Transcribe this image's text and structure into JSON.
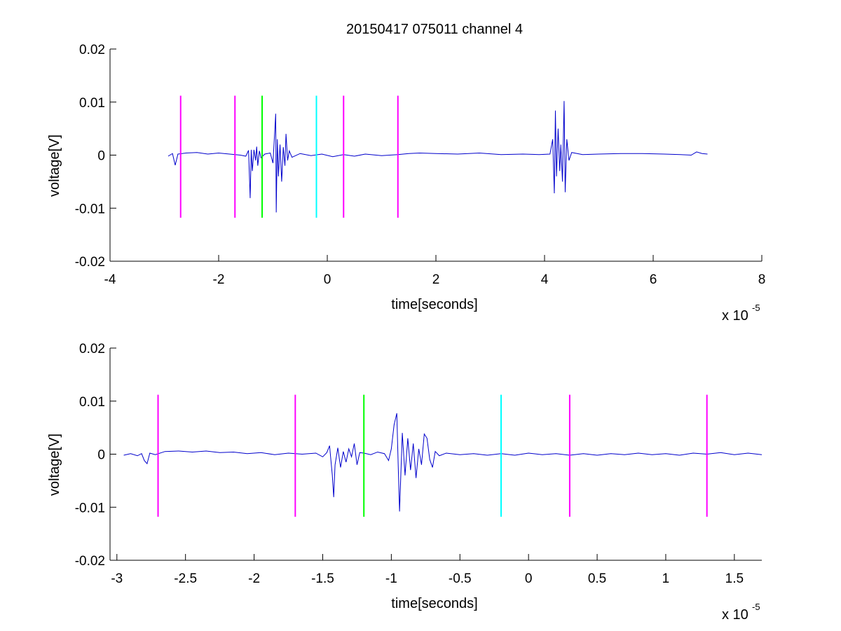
{
  "figure": {
    "title": "20150417 075011 channel 4"
  },
  "chart_data": [
    {
      "type": "line",
      "title": "20150417 075011 channel 4",
      "xlabel": "time[seconds]",
      "ylabel": "voltage[V]",
      "x_exponent_label": "x 10",
      "x_exponent": "-5",
      "xlim": [
        -4e-05,
        8e-05
      ],
      "ylim": [
        -0.02,
        0.02
      ],
      "xticks": [
        -4e-05,
        -2e-05,
        0,
        2e-05,
        4e-05,
        6e-05,
        8e-05
      ],
      "xtick_labels": [
        "-4",
        "-2",
        "0",
        "2",
        "4",
        "6",
        "8"
      ],
      "yticks": [
        -0.02,
        -0.01,
        0,
        0.01,
        0.02
      ],
      "ytick_labels": [
        "-0.02",
        "-0.01",
        "0",
        "0.01",
        "0.02"
      ],
      "grid": false,
      "series": [
        {
          "color": "#0000cc",
          "x_range": [
            -2.93e-05,
            7e-05
          ],
          "points": [
            [
              -2.93e-05,
              -0.0002
            ],
            [
              -2.85e-05,
              0.0003
            ],
            [
              -2.8e-05,
              -0.0019
            ],
            [
              -2.75e-05,
              0.0002
            ],
            [
              -2.6e-05,
              0.0004
            ],
            [
              -2.4e-05,
              0.0005
            ],
            [
              -2.2e-05,
              0.0002
            ],
            [
              -2e-05,
              0.0004
            ],
            [
              -1.8e-05,
              0.0002
            ],
            [
              -1.6e-05,
              0.0
            ],
            [
              -1.5e-05,
              -0.0002
            ],
            [
              -1.45e-05,
              0.0009
            ],
            [
              -1.43e-05,
              -0.005
            ],
            [
              -1.42e-05,
              -0.0081
            ],
            [
              -1.4e-05,
              0.001
            ],
            [
              -1.38e-05,
              -0.003
            ],
            [
              -1.35e-05,
              0.001
            ],
            [
              -1.32e-05,
              -0.001
            ],
            [
              -1.3e-05,
              0.0016
            ],
            [
              -1.28e-05,
              -0.002
            ],
            [
              -1.25e-05,
              0.0008
            ],
            [
              -1.22e-05,
              -0.0005
            ],
            [
              -1.15e-05,
              0.0002
            ],
            [
              -1.05e-05,
              0.0004
            ],
            [
              -1e-05,
              -0.0015
            ],
            [
              -9.7e-06,
              0.004
            ],
            [
              -9.5e-06,
              0.0078
            ],
            [
              -9.4e-06,
              -0.0108
            ],
            [
              -9.2e-06,
              0.003
            ],
            [
              -9e-06,
              -0.004
            ],
            [
              -8.7e-06,
              0.002
            ],
            [
              -8.4e-06,
              -0.005
            ],
            [
              -8.1e-06,
              0.0015
            ],
            [
              -7.8e-06,
              -0.002
            ],
            [
              -7.6e-06,
              0.004
            ],
            [
              -7.3e-06,
              -0.001
            ],
            [
              -7e-06,
              0.0008
            ],
            [
              -6.5e-06,
              -0.0004
            ],
            [
              -5e-06,
              0.0003
            ],
            [
              -3e-06,
              -0.0001
            ],
            [
              -1e-06,
              0.0002
            ],
            [
              1e-06,
              -0.0003
            ],
            [
              3e-06,
              0.0001
            ],
            [
              5e-06,
              -0.0002
            ],
            [
              7e-06,
              0.0002
            ],
            [
              1e-05,
              -0.0001
            ],
            [
              1.3e-05,
              0.0001
            ],
            [
              1.5e-05,
              0.0003
            ],
            [
              1.7e-05,
              0.0004
            ],
            [
              2e-05,
              0.0003
            ],
            [
              2.4e-05,
              0.0002
            ],
            [
              2.8e-05,
              0.0004
            ],
            [
              3.2e-05,
              0.0001
            ],
            [
              3.6e-05,
              0.0002
            ],
            [
              3.9e-05,
              0.0001
            ],
            [
              4.1e-05,
              0.0002
            ],
            [
              4.15e-05,
              0.003
            ],
            [
              4.18e-05,
              -0.0072
            ],
            [
              4.2e-05,
              0.0084
            ],
            [
              4.22e-05,
              -0.004
            ],
            [
              4.25e-05,
              0.005
            ],
            [
              4.28e-05,
              -0.003
            ],
            [
              4.3e-05,
              0.002
            ],
            [
              4.33e-05,
              -0.005
            ],
            [
              4.36e-05,
              0.0102
            ],
            [
              4.38e-05,
              -0.007
            ],
            [
              4.41e-05,
              0.003
            ],
            [
              4.45e-05,
              -0.001
            ],
            [
              4.5e-05,
              0.0005
            ],
            [
              4.7e-05,
              0.0001
            ],
            [
              5e-05,
              0.0002
            ],
            [
              5.4e-05,
              0.0003
            ],
            [
              5.8e-05,
              0.0003
            ],
            [
              6.2e-05,
              0.0002
            ],
            [
              6.5e-05,
              0.0001
            ],
            [
              6.7e-05,
              0.0
            ],
            [
              6.8e-05,
              0.0006
            ],
            [
              6.9e-05,
              0.0003
            ],
            [
              7e-05,
              0.0002
            ]
          ]
        }
      ],
      "markers": [
        {
          "x": -2.7e-05,
          "color": "#ff00ff",
          "ymin": -0.0118,
          "ymax": 0.0112
        },
        {
          "x": -1.7e-05,
          "color": "#ff00ff",
          "ymin": -0.0118,
          "ymax": 0.0112
        },
        {
          "x": -1.2e-05,
          "color": "#00ff00",
          "ymin": -0.0118,
          "ymax": 0.0112
        },
        {
          "x": -2e-06,
          "color": "#00ffff",
          "ymin": -0.0118,
          "ymax": 0.0112
        },
        {
          "x": 3e-06,
          "color": "#ff00ff",
          "ymin": -0.0118,
          "ymax": 0.0112
        },
        {
          "x": 1.3e-05,
          "color": "#ff00ff",
          "ymin": -0.0118,
          "ymax": 0.0112
        }
      ]
    },
    {
      "type": "line",
      "title": "",
      "xlabel": "time[seconds]",
      "ylabel": "voltage[V]",
      "x_exponent_label": "x 10",
      "x_exponent": "-5",
      "xlim": [
        -3.05e-05,
        1.7e-05
      ],
      "ylim": [
        -0.02,
        0.02
      ],
      "xticks": [
        -3e-05,
        -2.5e-05,
        -2e-05,
        -1.5e-05,
        -1e-05,
        -5e-06,
        0,
        5e-06,
        1e-05,
        1.5e-05
      ],
      "xtick_labels": [
        "-3",
        "-2.5",
        "-2",
        "-1.5",
        "-1",
        "-0.5",
        "0",
        "0.5",
        "1",
        "1.5"
      ],
      "yticks": [
        -0.02,
        -0.01,
        0,
        0.01,
        0.02
      ],
      "ytick_labels": [
        "-0.02",
        "-0.01",
        "0",
        "0.01",
        "0.02"
      ],
      "grid": false,
      "series": [
        {
          "color": "#0000cc",
          "x_range": [
            -2.95e-05,
            1.7e-05
          ],
          "points": [
            [
              -2.95e-05,
              -0.0002
            ],
            [
              -2.9e-05,
              0.0001
            ],
            [
              -2.85e-05,
              -0.0003
            ],
            [
              -2.82e-05,
              0.0001
            ],
            [
              -2.8e-05,
              -0.0012
            ],
            [
              -2.78e-05,
              -0.0018
            ],
            [
              -2.76e-05,
              0.0002
            ],
            [
              -2.72e-05,
              -0.0001
            ],
            [
              -2.65e-05,
              0.0005
            ],
            [
              -2.55e-05,
              0.0006
            ],
            [
              -2.45e-05,
              0.0004
            ],
            [
              -2.35e-05,
              0.0006
            ],
            [
              -2.25e-05,
              0.0003
            ],
            [
              -2.15e-05,
              0.0004
            ],
            [
              -2.05e-05,
              0.0001
            ],
            [
              -1.95e-05,
              0.0003
            ],
            [
              -1.85e-05,
              -0.0001
            ],
            [
              -1.75e-05,
              0.0002
            ],
            [
              -1.65e-05,
              0.0
            ],
            [
              -1.55e-05,
              0.0002
            ],
            [
              -1.5e-05,
              -0.0005
            ],
            [
              -1.47e-05,
              0.0003
            ],
            [
              -1.45e-05,
              0.0016
            ],
            [
              -1.43e-05,
              -0.004
            ],
            [
              -1.42e-05,
              -0.0081
            ],
            [
              -1.41e-05,
              -0.002
            ],
            [
              -1.39e-05,
              0.0012
            ],
            [
              -1.37e-05,
              -0.0025
            ],
            [
              -1.35e-05,
              0.0005
            ],
            [
              -1.33e-05,
              -0.0015
            ],
            [
              -1.31e-05,
              0.001
            ],
            [
              -1.29e-05,
              -0.0005
            ],
            [
              -1.27e-05,
              0.002
            ],
            [
              -1.25e-05,
              -0.002
            ],
            [
              -1.23e-05,
              0.0003
            ],
            [
              -1.2e-05,
              0.0002
            ],
            [
              -1.15e-05,
              -0.0001
            ],
            [
              -1.1e-05,
              0.0004
            ],
            [
              -1.05e-05,
              0.0001
            ],
            [
              -1.02e-05,
              -0.0012
            ],
            [
              -1e-05,
              0.001
            ],
            [
              -9.8e-06,
              0.0055
            ],
            [
              -9.6e-06,
              0.0077
            ],
            [
              -9.5e-06,
              -0.002
            ],
            [
              -9.4e-06,
              -0.0108
            ],
            [
              -9.2e-06,
              0.004
            ],
            [
              -9e-06,
              -0.004
            ],
            [
              -8.8e-06,
              0.003
            ],
            [
              -8.6e-06,
              -0.003
            ],
            [
              -8.4e-06,
              0.002
            ],
            [
              -8.2e-06,
              -0.0045
            ],
            [
              -8e-06,
              0.001
            ],
            [
              -7.8e-06,
              -0.002
            ],
            [
              -7.6e-06,
              0.0038
            ],
            [
              -7.4e-06,
              0.003
            ],
            [
              -7.2e-06,
              -0.001
            ],
            [
              -7e-06,
              -0.0025
            ],
            [
              -6.8e-06,
              0.0005
            ],
            [
              -6.5e-06,
              -0.0003
            ],
            [
              -6e-06,
              0.0002
            ],
            [
              -5e-06,
              -0.0001
            ],
            [
              -4e-06,
              0.0001
            ],
            [
              -3e-06,
              -0.0002
            ],
            [
              -2e-06,
              0.0001
            ],
            [
              -1e-06,
              -0.0002
            ],
            [
              0.0,
              0.0002
            ],
            [
              1e-06,
              -0.0001
            ],
            [
              2e-06,
              0.0001
            ],
            [
              3e-06,
              -0.0002
            ],
            [
              4e-06,
              0.0001
            ],
            [
              5e-06,
              -0.0002
            ],
            [
              6e-06,
              0.0001
            ],
            [
              7e-06,
              -0.0001
            ],
            [
              8e-06,
              0.0002
            ],
            [
              9e-06,
              -0.0001
            ],
            [
              1e-05,
              0.0001
            ],
            [
              1.1e-05,
              -0.0002
            ],
            [
              1.2e-05,
              0.0002
            ],
            [
              1.3e-05,
              0.0
            ],
            [
              1.4e-05,
              0.0003
            ],
            [
              1.5e-05,
              -0.0001
            ],
            [
              1.6e-05,
              0.0002
            ],
            [
              1.7e-05,
              -0.0001
            ]
          ]
        }
      ],
      "markers": [
        {
          "x": -2.7e-05,
          "color": "#ff00ff",
          "ymin": -0.0118,
          "ymax": 0.0112
        },
        {
          "x": -1.7e-05,
          "color": "#ff00ff",
          "ymin": -0.0118,
          "ymax": 0.0112
        },
        {
          "x": -1.2e-05,
          "color": "#00ff00",
          "ymin": -0.0118,
          "ymax": 0.0112
        },
        {
          "x": -2e-06,
          "color": "#00ffff",
          "ymin": -0.0118,
          "ymax": 0.0112
        },
        {
          "x": 3e-06,
          "color": "#ff00ff",
          "ymin": -0.0118,
          "ymax": 0.0112
        },
        {
          "x": 1.3e-05,
          "color": "#ff00ff",
          "ymin": -0.0118,
          "ymax": 0.0112
        }
      ]
    }
  ]
}
